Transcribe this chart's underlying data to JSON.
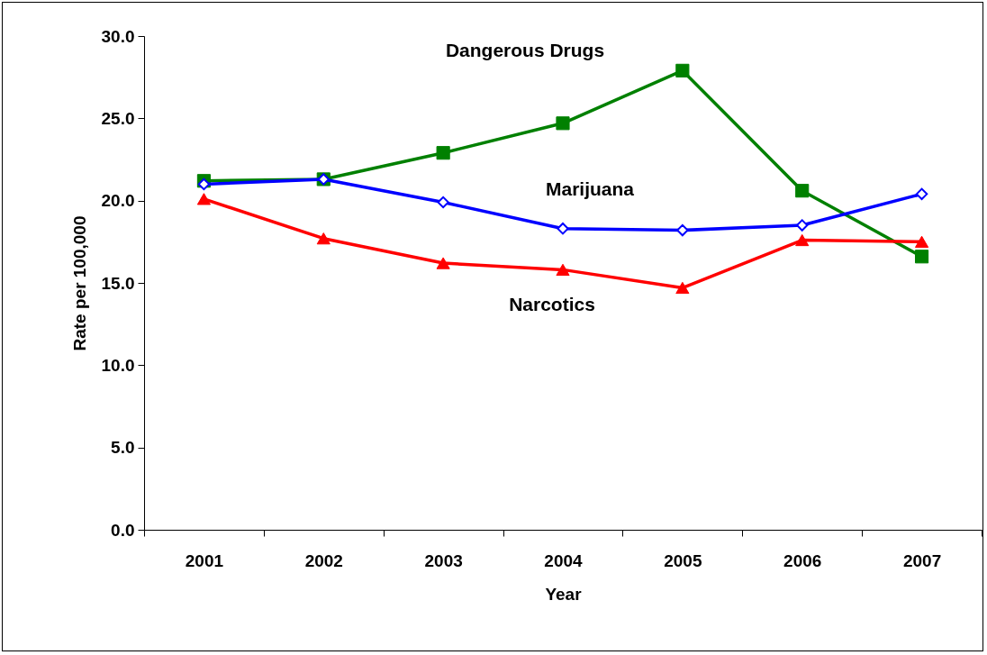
{
  "chart_data": {
    "type": "line",
    "xlabel": "Year",
    "ylabel": "Rate per 100,000",
    "categories": [
      "2001",
      "2002",
      "2003",
      "2004",
      "2005",
      "2006",
      "2007"
    ],
    "series": [
      {
        "name": "Dangerous Drugs",
        "color": "#008000",
        "marker": "square",
        "values": [
          21.2,
          21.3,
          22.9,
          24.7,
          27.9,
          20.6,
          16.6
        ]
      },
      {
        "name": "Marijuana",
        "color": "#0000ff",
        "marker": "diamond",
        "values": [
          21.0,
          21.3,
          19.9,
          18.3,
          18.2,
          18.5,
          20.4
        ]
      },
      {
        "name": "Narcotics",
        "color": "#ff0000",
        "marker": "triangle",
        "values": [
          20.1,
          17.7,
          16.2,
          15.8,
          14.7,
          17.6,
          17.5
        ]
      }
    ],
    "ylim": [
      0,
      30
    ],
    "yticks": [
      {
        "value": 0,
        "label": "0.0"
      },
      {
        "value": 5,
        "label": "5.0"
      },
      {
        "value": 10,
        "label": "10.0"
      },
      {
        "value": 15,
        "label": "15.0"
      },
      {
        "value": 20,
        "label": "20.0"
      },
      {
        "value": 25,
        "label": "25.0"
      },
      {
        "value": 30,
        "label": "30.0"
      }
    ],
    "grid": false,
    "legend": false
  }
}
